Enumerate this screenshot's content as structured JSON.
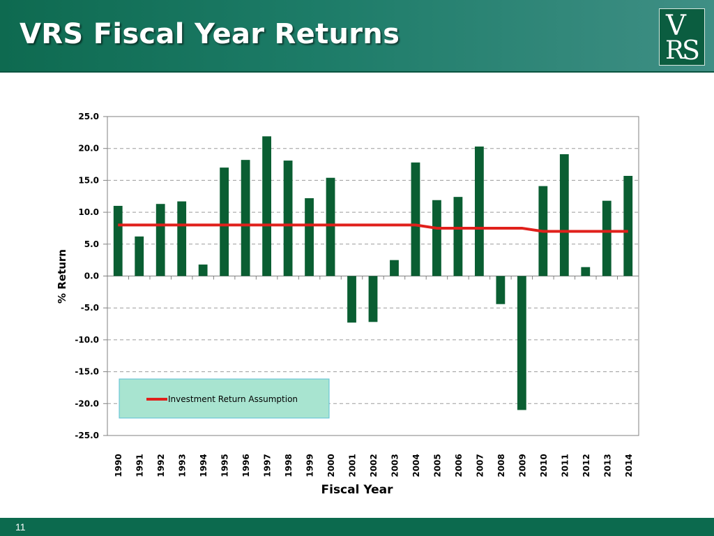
{
  "header": {
    "title": "VRS Fiscal Year Returns",
    "logo_letters": [
      "V",
      "R",
      "S"
    ]
  },
  "footer": {
    "page_number": "11"
  },
  "colors": {
    "header_bg": "#0e6a50",
    "bar": "#0a5e32",
    "assumption_line": "#e0201b",
    "legend_bg": "#a8e4d0",
    "legend_border": "#5bbfd6"
  },
  "chart_data": {
    "type": "bar",
    "xlabel": "Fiscal Year",
    "ylabel": "% Return",
    "ylim": [
      -25,
      25
    ],
    "y_ticks": [
      "25.0",
      "20.0",
      "15.0",
      "10.0",
      "5.0",
      "0.0",
      "-5.0",
      "-10.0",
      "-15.0",
      "-20.0",
      "-25.0"
    ],
    "grid": "dashed horizontal",
    "legend_placement": "lower-left",
    "categories": [
      "1990",
      "1991",
      "1992",
      "1993",
      "1994",
      "1995",
      "1996",
      "1997",
      "1998",
      "1999",
      "2000",
      "2001",
      "2002",
      "2003",
      "2004",
      "2005",
      "2006",
      "2007",
      "2008",
      "2009",
      "2010",
      "2011",
      "2012",
      "2013",
      "2014"
    ],
    "series": [
      {
        "type": "bar",
        "values": [
          11.0,
          6.2,
          11.3,
          11.7,
          1.8,
          17.0,
          18.2,
          21.9,
          18.1,
          12.2,
          15.4,
          -7.3,
          -7.2,
          2.5,
          17.8,
          11.9,
          12.4,
          20.3,
          -4.4,
          -21.0,
          14.1,
          19.1,
          1.4,
          11.8,
          15.7
        ]
      },
      {
        "name": "Investment Return Assumption",
        "type": "line",
        "values": [
          8.0,
          8.0,
          8.0,
          8.0,
          8.0,
          8.0,
          8.0,
          8.0,
          8.0,
          8.0,
          8.0,
          8.0,
          8.0,
          8.0,
          8.0,
          7.5,
          7.5,
          7.5,
          7.5,
          7.5,
          7.0,
          7.0,
          7.0,
          7.0,
          7.0
        ]
      }
    ]
  }
}
